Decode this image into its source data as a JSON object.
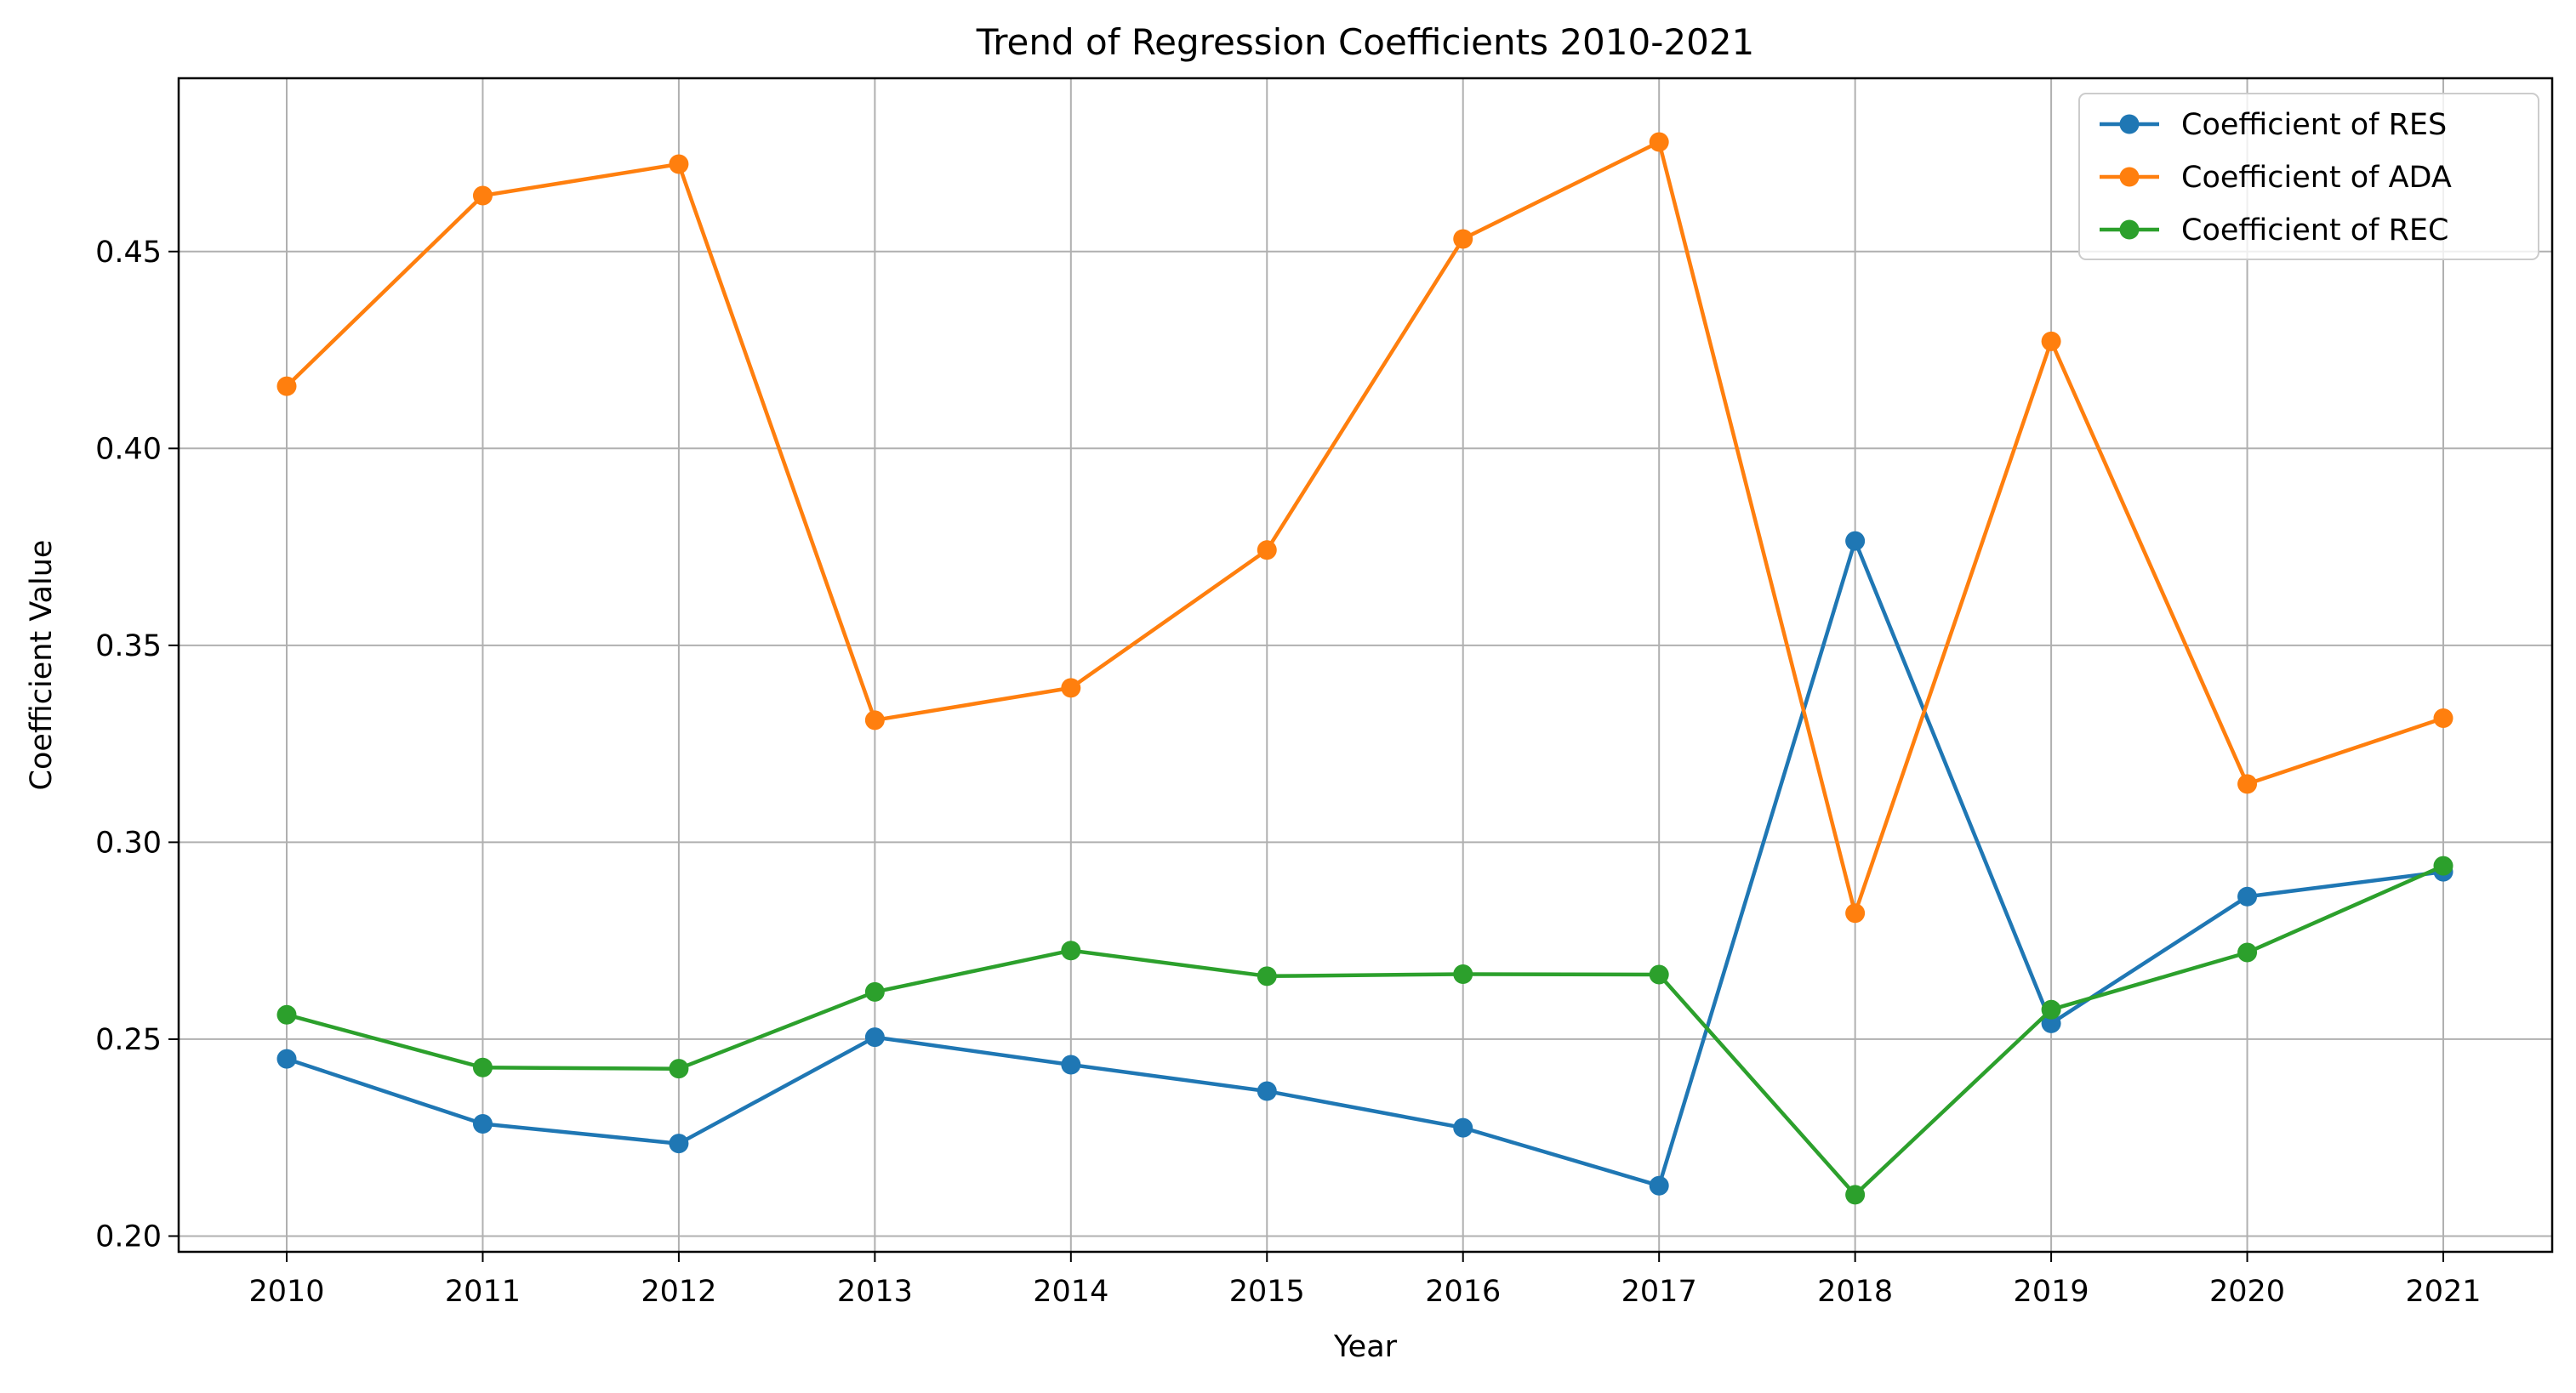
{
  "chart_data": {
    "type": "line",
    "title": "Trend of Regression Coefficients 2010-2021",
    "xlabel": "Year",
    "ylabel": "Coefficient Value",
    "categories": [
      "2010",
      "2011",
      "2012",
      "2013",
      "2014",
      "2015",
      "2016",
      "2017",
      "2018",
      "2019",
      "2020",
      "2021"
    ],
    "ylim": [
      0.196,
      0.494
    ],
    "yticks": [
      "0.20",
      "0.25",
      "0.30",
      "0.35",
      "0.40",
      "0.45"
    ],
    "grid": true,
    "legend_position": "top-right",
    "marker": "circle",
    "series": [
      {
        "name": "Coefficient of RES",
        "color": "#1f77b4",
        "values": [
          0.245,
          0.2285,
          0.2235,
          0.2505,
          0.2435,
          0.2368,
          0.2275,
          0.2128,
          0.3765,
          0.254,
          0.2862,
          0.2925
        ]
      },
      {
        "name": "Coefficient of ADA",
        "color": "#ff7f0e",
        "values": [
          0.4158,
          0.4642,
          0.4722,
          0.331,
          0.3392,
          0.3742,
          0.4532,
          0.4778,
          0.282,
          0.4272,
          0.3148,
          0.3315
        ]
      },
      {
        "name": "Coefficient of REC",
        "color": "#2ca02c",
        "values": [
          0.2562,
          0.2428,
          0.2425,
          0.262,
          0.2725,
          0.266,
          0.2665,
          0.2664,
          0.2105,
          0.2575,
          0.272,
          0.294
        ]
      }
    ]
  }
}
